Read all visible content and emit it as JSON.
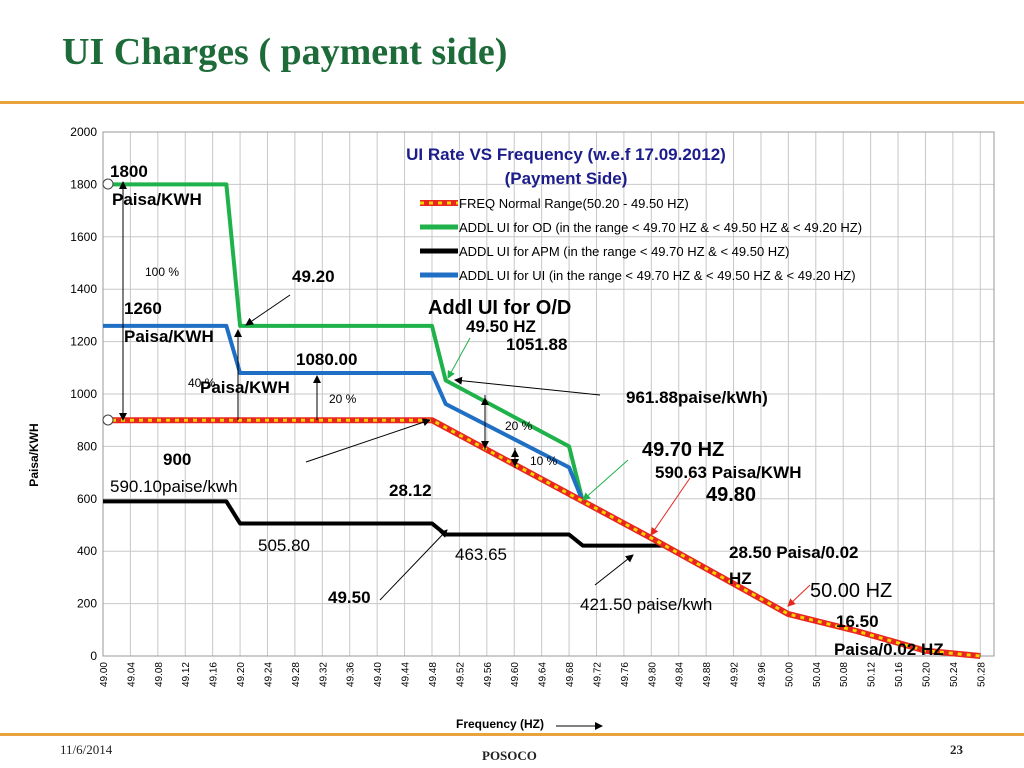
{
  "slide": {
    "title": "UI Charges ( payment side)",
    "date": "11/6/2014",
    "organization": "POSOCO",
    "page_number": "23"
  },
  "colors": {
    "title": "#1e6b3a",
    "accent_rule": "#e8a33d",
    "freq_normal": "#e8261f",
    "freq_normal_dash": "#f2d500",
    "od": "#1fb24a",
    "apm": "#000000",
    "ui": "#1f6fc4",
    "chart_title": "#1c1c8c",
    "grid": "#c8c8c8"
  },
  "chart_data": {
    "type": "line",
    "title": "UI Rate VS Frequency (w.e.f 17.09.2012)",
    "subtitle": "(Payment Side)",
    "xlabel": "Frequency (HZ)",
    "ylabel": "Paisa/KWH",
    "xlim": [
      49.0,
      50.3
    ],
    "ylim": [
      0,
      2000
    ],
    "x_ticks": [
      "49.00",
      "49.04",
      "49.08",
      "49.12",
      "49.16",
      "49.20",
      "49.24",
      "49.28",
      "49.32",
      "49.36",
      "49.40",
      "49.44",
      "49.48",
      "49.52",
      "49.56",
      "49.60",
      "49.64",
      "49.68",
      "49.72",
      "49.76",
      "49.80",
      "49.84",
      "49.88",
      "49.92",
      "49.96",
      "50.00",
      "50.04",
      "50.08",
      "50.12",
      "50.16",
      "50.20",
      "50.24",
      "50.28"
    ],
    "y_ticks": [
      "0",
      "200",
      "400",
      "600",
      "800",
      "1000",
      "1200",
      "1400",
      "1600",
      "1800",
      "2000"
    ],
    "grid": true,
    "legend_position": "top-right",
    "series": [
      {
        "key": "od",
        "name": "ADDL UI for OD (in the range < 49.70 HZ & < 49.50 HZ & < 49.20 HZ)",
        "x": [
          49.0,
          49.18,
          49.2,
          49.48,
          49.5,
          49.68,
          49.7,
          49.8,
          49.9,
          50.0,
          50.1,
          50.2,
          50.28
        ],
        "y": [
          1800,
          1800,
          1260,
          1260,
          1051.88,
          800,
          590.63,
          450,
          305,
          160,
          95,
          20,
          0
        ]
      },
      {
        "key": "ui",
        "name": "ADDL UI for UI (in the range < 49.70 HZ & < 49.50 HZ & < 49.20 HZ)",
        "x": [
          49.0,
          49.18,
          49.2,
          49.48,
          49.5,
          49.68,
          49.7,
          49.8,
          49.9,
          50.0,
          50.1,
          50.2,
          50.28
        ],
        "y": [
          1260,
          1260,
          1080,
          1080,
          961.88,
          720,
          590.63,
          450,
          305,
          160,
          95,
          20,
          0
        ]
      },
      {
        "key": "apm",
        "name": "ADDL UI for APM (in the range < 49.70 HZ & < 49.50 HZ)",
        "x": [
          49.0,
          49.18,
          49.2,
          49.48,
          49.5,
          49.68,
          49.7,
          49.82,
          49.9,
          50.0,
          50.1,
          50.2,
          50.28
        ],
        "y": [
          590.1,
          590.1,
          505.8,
          505.8,
          463.65,
          463.65,
          421.5,
          421.5,
          305,
          160,
          95,
          20,
          0
        ]
      },
      {
        "key": "freq_normal",
        "name": "FREQ Normal Range(50.20 - 49.50 HZ)",
        "x": [
          49.0,
          49.48,
          49.7,
          49.8,
          49.9,
          50.0,
          50.1,
          50.2,
          50.28
        ],
        "y": [
          900,
          900,
          590.63,
          450,
          305,
          160,
          95,
          20,
          0
        ]
      }
    ],
    "annotations": [
      {
        "text": "1800",
        "bold": true
      },
      {
        "text": "Paisa/KWH",
        "bold": true
      },
      {
        "text": "100 %",
        "bold": false
      },
      {
        "text": "49.20",
        "bold": true
      },
      {
        "text": "1260",
        "bold": true
      },
      {
        "text": "Paisa/KWH",
        "bold": true
      },
      {
        "text": "1080.00",
        "bold": true
      },
      {
        "text": "40 %",
        "bold": false
      },
      {
        "text": "Paisa/KWH",
        "bold": true
      },
      {
        "text": "20 %",
        "bold": false
      },
      {
        "text": "Addl UI for  O/D",
        "bold": true
      },
      {
        "text": "49.50 HZ",
        "bold": true
      },
      {
        "text": "1051.88",
        "bold": true
      },
      {
        "text": "961.88paise/kWh)",
        "bold": true
      },
      {
        "text": "20 %",
        "bold": false
      },
      {
        "text": "10 %",
        "bold": false
      },
      {
        "text": "49.70 HZ",
        "bold": true
      },
      {
        "text": "590.63  Paisa/KWH",
        "bold": true
      },
      {
        "text": "49.80",
        "bold": true
      },
      {
        "text": "900",
        "bold": true
      },
      {
        "text": "590.10paise/kwh",
        "bold": false
      },
      {
        "text": "28.12",
        "bold": true
      },
      {
        "text": "505.80",
        "bold": false
      },
      {
        "text": "463.65",
        "bold": false
      },
      {
        "text": "49.50",
        "bold": true
      },
      {
        "text": "421.50 paise/kwh",
        "bold": false
      },
      {
        "text": "28.50 Paisa/0.02",
        "bold": true
      },
      {
        "text": "HZ",
        "bold": true
      },
      {
        "text": "50.00 HZ",
        "bold": false
      },
      {
        "text": "16.50",
        "bold": true
      },
      {
        "text": "Paisa/0.02 HZ",
        "bold": true
      }
    ]
  }
}
